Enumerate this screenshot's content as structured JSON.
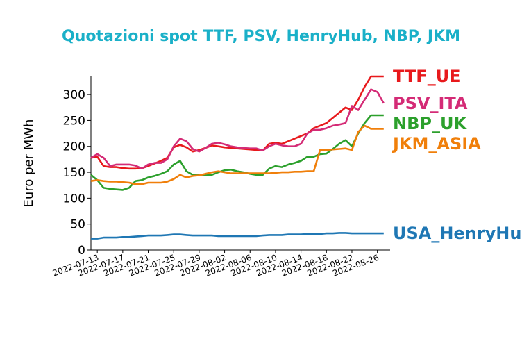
{
  "chart_data": {
    "type": "line",
    "title": "Quotazioni spot TTF, PSV, HenryHub, NBP, JKM",
    "title_color": "#1ab0c8",
    "xlabel": "",
    "ylabel": "Euro per MWh",
    "ylim": [
      0,
      335
    ],
    "xlim": [
      "2022-07-12",
      "2022-08-28"
    ],
    "yticks": [
      0,
      50,
      100,
      150,
      200,
      250,
      300
    ],
    "xticks": [
      "2022-07-13",
      "2022-07-17",
      "2022-07-21",
      "2022-07-25",
      "2022-07-29",
      "2022-08-02",
      "2022-08-06",
      "2022-08-10",
      "2022-08-14",
      "2022-08-18",
      "2022-08-22",
      "2022-08-26"
    ],
    "grid": false,
    "legend": "end-labels",
    "x": [
      "2022-07-12",
      "2022-07-13",
      "2022-07-14",
      "2022-07-15",
      "2022-07-16",
      "2022-07-17",
      "2022-07-18",
      "2022-07-19",
      "2022-07-20",
      "2022-07-21",
      "2022-07-22",
      "2022-07-23",
      "2022-07-24",
      "2022-07-25",
      "2022-07-26",
      "2022-07-27",
      "2022-07-28",
      "2022-07-29",
      "2022-07-30",
      "2022-07-31",
      "2022-08-01",
      "2022-08-02",
      "2022-08-03",
      "2022-08-04",
      "2022-08-05",
      "2022-08-06",
      "2022-08-07",
      "2022-08-08",
      "2022-08-09",
      "2022-08-10",
      "2022-08-11",
      "2022-08-12",
      "2022-08-13",
      "2022-08-14",
      "2022-08-15",
      "2022-08-16",
      "2022-08-17",
      "2022-08-18",
      "2022-08-19",
      "2022-08-20",
      "2022-08-21",
      "2022-08-22",
      "2022-08-23",
      "2022-08-24",
      "2022-08-25",
      "2022-08-26",
      "2022-08-27",
      "2022-08-28"
    ],
    "series": [
      {
        "name": "TTF_UE",
        "color": "#e8191c",
        "values": [
          178,
          180,
          162,
          160,
          160,
          158,
          157,
          157,
          158,
          162,
          167,
          172,
          178,
          198,
          203,
          198,
          190,
          193,
          197,
          202,
          200,
          198,
          197,
          196,
          195,
          194,
          193,
          192,
          205,
          207,
          205,
          210,
          215,
          220,
          225,
          235,
          240,
          245,
          255,
          265,
          275,
          270,
          290,
          315,
          335,
          335,
          335,
          null
        ]
      },
      {
        "name": "PSV_ITA",
        "color": "#d42b76",
        "values": [
          178,
          185,
          178,
          162,
          165,
          165,
          165,
          163,
          157,
          165,
          168,
          168,
          175,
          200,
          215,
          210,
          195,
          190,
          197,
          205,
          207,
          204,
          200,
          198,
          197,
          196,
          196,
          192,
          200,
          205,
          202,
          200,
          200,
          205,
          225,
          232,
          232,
          235,
          240,
          242,
          245,
          278,
          270,
          290,
          310,
          305,
          283,
          null
        ]
      },
      {
        "name": "NBP_UK",
        "color": "#2ca02c",
        "values": [
          145,
          135,
          120,
          118,
          117,
          116,
          120,
          133,
          135,
          140,
          143,
          147,
          152,
          165,
          172,
          152,
          145,
          145,
          144,
          145,
          150,
          154,
          155,
          152,
          150,
          147,
          145,
          145,
          157,
          162,
          160,
          165,
          168,
          172,
          180,
          180,
          185,
          186,
          195,
          205,
          212,
          200,
          225,
          245,
          260,
          260,
          260,
          null
        ]
      },
      {
        "name": "JKM_ASIA",
        "color": "#f07f0a",
        "values": [
          133,
          135,
          133,
          132,
          132,
          131,
          130,
          127,
          127,
          130,
          130,
          130,
          132,
          137,
          145,
          140,
          143,
          144,
          147,
          150,
          152,
          150,
          148,
          148,
          148,
          148,
          148,
          148,
          148,
          149,
          150,
          150,
          151,
          151,
          152,
          152,
          193,
          193,
          194,
          195,
          196,
          193,
          228,
          240,
          234,
          234,
          234,
          null
        ]
      },
      {
        "name": "USA_HenryHub",
        "color": "#1f77b4",
        "values": [
          22,
          22,
          24,
          24,
          24,
          25,
          25,
          26,
          27,
          28,
          28,
          28,
          29,
          30,
          30,
          29,
          28,
          28,
          28,
          28,
          27,
          27,
          27,
          27,
          27,
          27,
          27,
          28,
          29,
          29,
          29,
          30,
          30,
          30,
          31,
          31,
          31,
          32,
          32,
          33,
          33,
          32,
          32,
          32,
          32,
          32,
          32,
          null
        ]
      }
    ],
    "end_label_colors": {
      "TTF_UE": "#e8191c",
      "PSV_ITA": "#d42b76",
      "NBP_UK": "#2ca02c",
      "JKM_ASIA": "#f07f0a",
      "USA_HenryHub": "#1f77b4"
    }
  }
}
